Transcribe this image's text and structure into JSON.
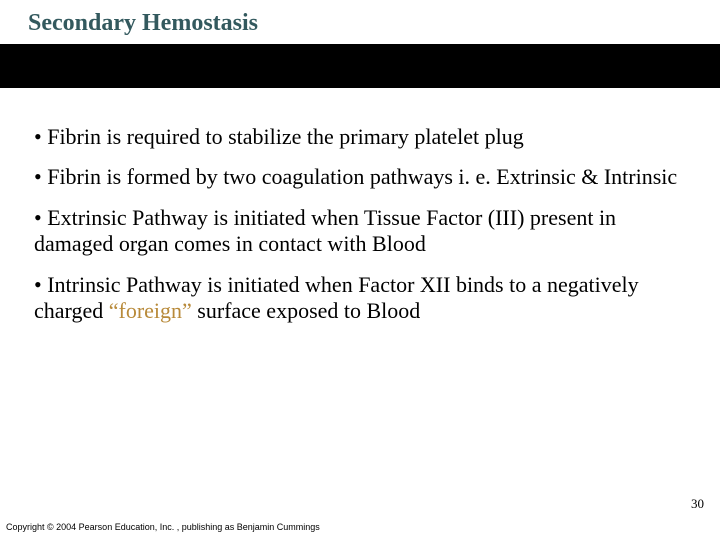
{
  "colors": {
    "title_color": "#33595e",
    "banner_dark": "#000000",
    "body_text": "#000000",
    "highlight": "#b88a3a",
    "background": "#ffffff"
  },
  "typography": {
    "title_font": "Georgia, serif",
    "title_size_pt": 18,
    "title_weight": "bold",
    "body_font": "Georgia, serif",
    "body_size_pt": 17,
    "copyright_size_pt": 7
  },
  "title": "Secondary Hemostasis",
  "bullets": [
    {
      "prefix": "• ",
      "text_a": "Fibrin is required to stabilize the primary platelet plug",
      "highlight": "",
      "text_b": ""
    },
    {
      "prefix": "• ",
      "text_a": "Fibrin is formed by two coagulation pathways i. e. Extrinsic & Intrinsic",
      "highlight": "",
      "text_b": ""
    },
    {
      "prefix": "• ",
      "text_a": "Extrinsic Pathway is initiated when Tissue Factor (III) present in damaged organ comes in contact with Blood",
      "highlight": "",
      "text_b": ""
    },
    {
      "prefix": "• ",
      "text_a": "Intrinsic Pathway is initiated when Factor XII binds to a negatively charged ",
      "highlight": "“foreign”",
      "text_b": " surface exposed to Blood"
    }
  ],
  "page_number": "30",
  "copyright": "Copyright © 2004 Pearson Education, Inc. , publishing as Benjamin Cummings"
}
